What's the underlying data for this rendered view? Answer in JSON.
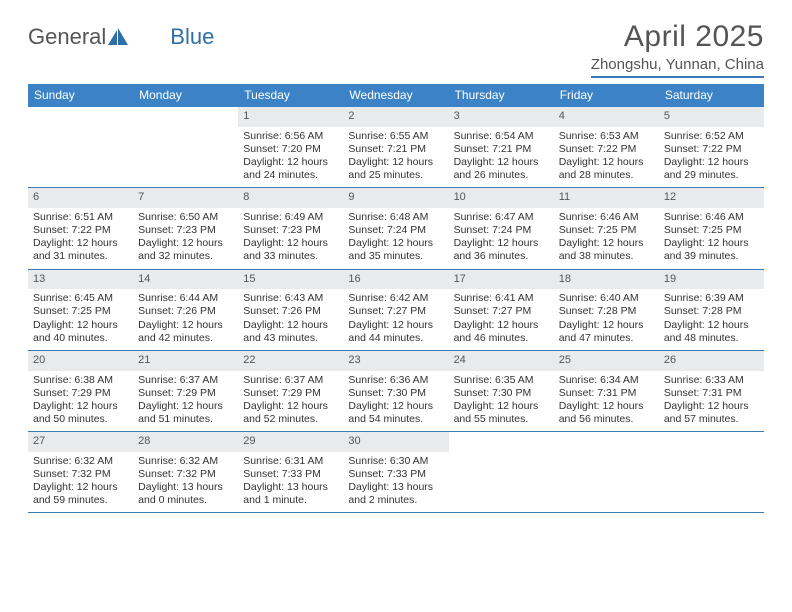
{
  "logo": {
    "text1": "General",
    "text2": "Blue"
  },
  "title": "April 2025",
  "location": "Zhongshu, Yunnan, China",
  "header_color": "#3b83c6",
  "divider_color": "#3b7ab5",
  "daynum_bg": "#e9eaeb",
  "day_names": [
    "Sunday",
    "Monday",
    "Tuesday",
    "Wednesday",
    "Thursday",
    "Friday",
    "Saturday"
  ],
  "weeks": [
    [
      {
        "n": "",
        "sr": "",
        "ss": "",
        "dl": ""
      },
      {
        "n": "",
        "sr": "",
        "ss": "",
        "dl": ""
      },
      {
        "n": "1",
        "sr": "Sunrise: 6:56 AM",
        "ss": "Sunset: 7:20 PM",
        "dl": "Daylight: 12 hours and 24 minutes."
      },
      {
        "n": "2",
        "sr": "Sunrise: 6:55 AM",
        "ss": "Sunset: 7:21 PM",
        "dl": "Daylight: 12 hours and 25 minutes."
      },
      {
        "n": "3",
        "sr": "Sunrise: 6:54 AM",
        "ss": "Sunset: 7:21 PM",
        "dl": "Daylight: 12 hours and 26 minutes."
      },
      {
        "n": "4",
        "sr": "Sunrise: 6:53 AM",
        "ss": "Sunset: 7:22 PM",
        "dl": "Daylight: 12 hours and 28 minutes."
      },
      {
        "n": "5",
        "sr": "Sunrise: 6:52 AM",
        "ss": "Sunset: 7:22 PM",
        "dl": "Daylight: 12 hours and 29 minutes."
      }
    ],
    [
      {
        "n": "6",
        "sr": "Sunrise: 6:51 AM",
        "ss": "Sunset: 7:22 PM",
        "dl": "Daylight: 12 hours and 31 minutes."
      },
      {
        "n": "7",
        "sr": "Sunrise: 6:50 AM",
        "ss": "Sunset: 7:23 PM",
        "dl": "Daylight: 12 hours and 32 minutes."
      },
      {
        "n": "8",
        "sr": "Sunrise: 6:49 AM",
        "ss": "Sunset: 7:23 PM",
        "dl": "Daylight: 12 hours and 33 minutes."
      },
      {
        "n": "9",
        "sr": "Sunrise: 6:48 AM",
        "ss": "Sunset: 7:24 PM",
        "dl": "Daylight: 12 hours and 35 minutes."
      },
      {
        "n": "10",
        "sr": "Sunrise: 6:47 AM",
        "ss": "Sunset: 7:24 PM",
        "dl": "Daylight: 12 hours and 36 minutes."
      },
      {
        "n": "11",
        "sr": "Sunrise: 6:46 AM",
        "ss": "Sunset: 7:25 PM",
        "dl": "Daylight: 12 hours and 38 minutes."
      },
      {
        "n": "12",
        "sr": "Sunrise: 6:46 AM",
        "ss": "Sunset: 7:25 PM",
        "dl": "Daylight: 12 hours and 39 minutes."
      }
    ],
    [
      {
        "n": "13",
        "sr": "Sunrise: 6:45 AM",
        "ss": "Sunset: 7:25 PM",
        "dl": "Daylight: 12 hours and 40 minutes."
      },
      {
        "n": "14",
        "sr": "Sunrise: 6:44 AM",
        "ss": "Sunset: 7:26 PM",
        "dl": "Daylight: 12 hours and 42 minutes."
      },
      {
        "n": "15",
        "sr": "Sunrise: 6:43 AM",
        "ss": "Sunset: 7:26 PM",
        "dl": "Daylight: 12 hours and 43 minutes."
      },
      {
        "n": "16",
        "sr": "Sunrise: 6:42 AM",
        "ss": "Sunset: 7:27 PM",
        "dl": "Daylight: 12 hours and 44 minutes."
      },
      {
        "n": "17",
        "sr": "Sunrise: 6:41 AM",
        "ss": "Sunset: 7:27 PM",
        "dl": "Daylight: 12 hours and 46 minutes."
      },
      {
        "n": "18",
        "sr": "Sunrise: 6:40 AM",
        "ss": "Sunset: 7:28 PM",
        "dl": "Daylight: 12 hours and 47 minutes."
      },
      {
        "n": "19",
        "sr": "Sunrise: 6:39 AM",
        "ss": "Sunset: 7:28 PM",
        "dl": "Daylight: 12 hours and 48 minutes."
      }
    ],
    [
      {
        "n": "20",
        "sr": "Sunrise: 6:38 AM",
        "ss": "Sunset: 7:29 PM",
        "dl": "Daylight: 12 hours and 50 minutes."
      },
      {
        "n": "21",
        "sr": "Sunrise: 6:37 AM",
        "ss": "Sunset: 7:29 PM",
        "dl": "Daylight: 12 hours and 51 minutes."
      },
      {
        "n": "22",
        "sr": "Sunrise: 6:37 AM",
        "ss": "Sunset: 7:29 PM",
        "dl": "Daylight: 12 hours and 52 minutes."
      },
      {
        "n": "23",
        "sr": "Sunrise: 6:36 AM",
        "ss": "Sunset: 7:30 PM",
        "dl": "Daylight: 12 hours and 54 minutes."
      },
      {
        "n": "24",
        "sr": "Sunrise: 6:35 AM",
        "ss": "Sunset: 7:30 PM",
        "dl": "Daylight: 12 hours and 55 minutes."
      },
      {
        "n": "25",
        "sr": "Sunrise: 6:34 AM",
        "ss": "Sunset: 7:31 PM",
        "dl": "Daylight: 12 hours and 56 minutes."
      },
      {
        "n": "26",
        "sr": "Sunrise: 6:33 AM",
        "ss": "Sunset: 7:31 PM",
        "dl": "Daylight: 12 hours and 57 minutes."
      }
    ],
    [
      {
        "n": "27",
        "sr": "Sunrise: 6:32 AM",
        "ss": "Sunset: 7:32 PM",
        "dl": "Daylight: 12 hours and 59 minutes."
      },
      {
        "n": "28",
        "sr": "Sunrise: 6:32 AM",
        "ss": "Sunset: 7:32 PM",
        "dl": "Daylight: 13 hours and 0 minutes."
      },
      {
        "n": "29",
        "sr": "Sunrise: 6:31 AM",
        "ss": "Sunset: 7:33 PM",
        "dl": "Daylight: 13 hours and 1 minute."
      },
      {
        "n": "30",
        "sr": "Sunrise: 6:30 AM",
        "ss": "Sunset: 7:33 PM",
        "dl": "Daylight: 13 hours and 2 minutes."
      },
      {
        "n": "",
        "sr": "",
        "ss": "",
        "dl": ""
      },
      {
        "n": "",
        "sr": "",
        "ss": "",
        "dl": ""
      },
      {
        "n": "",
        "sr": "",
        "ss": "",
        "dl": ""
      }
    ]
  ]
}
